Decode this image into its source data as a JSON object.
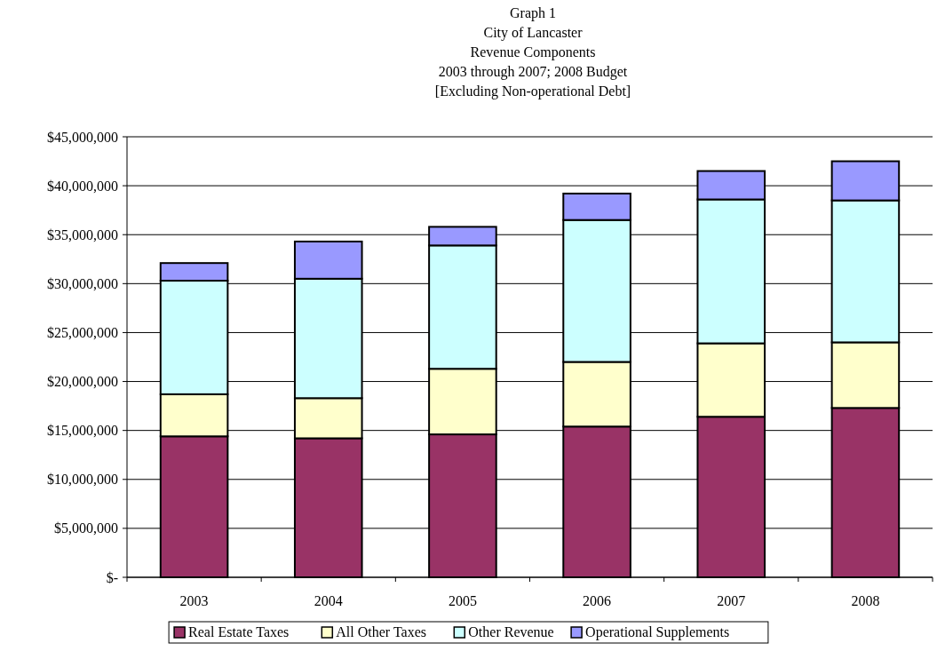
{
  "chart_data": {
    "type": "bar",
    "title": "Graph 1\nCity of Lancaster\nRevenue Components\n2003 through 2007; 2008 Budget\n[Excluding Non-operational Debt]",
    "categories": [
      "2003",
      "2004",
      "2005",
      "2006",
      "2007",
      "2008"
    ],
    "stacked": true,
    "series": [
      {
        "name": "Real Estate Taxes",
        "color": "#993366",
        "values": [
          14400000,
          14200000,
          14600000,
          15400000,
          16400000,
          17300000
        ]
      },
      {
        "name": "All Other Taxes",
        "color": "#ffffcc",
        "values": [
          4300000,
          4100000,
          6700000,
          6600000,
          7500000,
          6700000
        ]
      },
      {
        "name": "Other Revenue",
        "color": "#ccffff",
        "values": [
          11600000,
          12200000,
          12600000,
          14500000,
          14700000,
          14500000
        ]
      },
      {
        "name": "Operational Supplements",
        "color": "#9999ff",
        "values": [
          1800000,
          3800000,
          1900000,
          2700000,
          2900000,
          4000000
        ]
      }
    ],
    "ylim": [
      0,
      45000000
    ],
    "yticks": [
      {
        "value": 0,
        "label": "$-"
      },
      {
        "value": 5000000,
        "label": "$5,000,000"
      },
      {
        "value": 10000000,
        "label": "$10,000,000"
      },
      {
        "value": 15000000,
        "label": "$15,000,000"
      },
      {
        "value": 20000000,
        "label": "$20,000,000"
      },
      {
        "value": 25000000,
        "label": "$25,000,000"
      },
      {
        "value": 30000000,
        "label": "$30,000,000"
      },
      {
        "value": 35000000,
        "label": "$35,000,000"
      },
      {
        "value": 40000000,
        "label": "$40,000,000"
      },
      {
        "value": 45000000,
        "label": "$45,000,000"
      }
    ],
    "grid": "y",
    "legend": "bottom"
  }
}
